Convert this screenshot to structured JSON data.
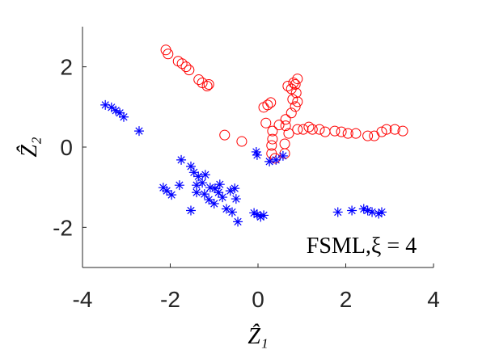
{
  "chart_data": {
    "type": "scatter",
    "xlabel": "Ẑ₁",
    "ylabel": "Ẑ₂",
    "annotation": "FSML,ξ = 4",
    "xlim": [
      -4,
      4
    ],
    "ylim": [
      -3,
      3
    ],
    "xticks": [
      -4,
      -2,
      0,
      2,
      4
    ],
    "yticks": [
      -2,
      0,
      2
    ],
    "series": [
      {
        "color": "#ff0000",
        "marker": "circle",
        "x": [
          -2.1,
          -2.05,
          -1.82,
          -1.73,
          -1.64,
          -1.57,
          -1.35,
          -1.27,
          -1.16,
          -1.12,
          -0.76,
          -0.37,
          0.13,
          0.22,
          0.29,
          0.18,
          0.33,
          0.33,
          0.31,
          0.31,
          0.61,
          0.61,
          0.39,
          0.63,
          0.63,
          0.76,
          0.85,
          0.9,
          0.79,
          0.76,
          0.85,
          0.9,
          0.81,
          0.68,
          0.87,
          0.7,
          0.9,
          1.03,
          1.24,
          1.4,
          1.53,
          1.75,
          1.9,
          2.05,
          2.23,
          2.5,
          2.65,
          2.82,
          2.93,
          3.12,
          3.3,
          1.16,
          0.48
        ],
        "y": [
          2.42,
          2.32,
          2.14,
          2.08,
          2.0,
          1.92,
          1.68,
          1.6,
          1.52,
          1.56,
          0.3,
          0.14,
          0.99,
          1.05,
          1.11,
          0.6,
          0.4,
          0.2,
          0.04,
          -0.16,
          0.08,
          -0.16,
          -0.28,
          0.69,
          0.53,
          0.85,
          1.01,
          1.13,
          1.19,
          1.45,
          1.56,
          1.7,
          1.6,
          1.52,
          1.35,
          0.34,
          0.44,
          0.44,
          0.44,
          0.44,
          0.38,
          0.4,
          0.38,
          0.34,
          0.34,
          0.28,
          0.28,
          0.38,
          0.44,
          0.44,
          0.4,
          0.5,
          0.55
        ]
      },
      {
        "color": "#0000ff",
        "marker": "star",
        "x": [
          -3.48,
          -3.34,
          -3.24,
          -3.15,
          -3.06,
          -2.71,
          -0.02,
          -0.04,
          0.26,
          0.41,
          0.57,
          -0.02,
          0.06,
          0.13,
          -0.09,
          -2.16,
          -2.08,
          -1.97,
          -1.79,
          -1.75,
          -1.53,
          -1.46,
          -1.36,
          -1.27,
          -1.4,
          -1.53,
          -1.22,
          -1.09,
          -1.12,
          -1.0,
          -0.9,
          -0.87,
          -0.81,
          -0.72,
          -0.63,
          -0.53,
          -0.5,
          -0.59,
          -0.46,
          -1.2,
          -1.4,
          -0.98,
          1.82,
          2.14,
          2.41,
          2.5,
          2.6,
          2.75,
          2.82
        ],
        "y": [
          1.05,
          0.99,
          0.91,
          0.85,
          0.75,
          0.4,
          -0.2,
          -0.12,
          -0.36,
          -0.32,
          -0.22,
          -1.68,
          -1.74,
          -1.7,
          -1.64,
          -1.01,
          -1.09,
          -1.19,
          -0.95,
          -0.32,
          -0.48,
          -0.63,
          -0.73,
          -0.89,
          -1.13,
          -1.58,
          -1.17,
          -1.01,
          -1.31,
          -1.41,
          -1.13,
          -0.93,
          -1.25,
          -1.54,
          -1.09,
          -1.03,
          -1.29,
          -1.62,
          -1.86,
          -0.69,
          -0.95,
          -1.03,
          -1.62,
          -1.58,
          -1.54,
          -1.58,
          -1.62,
          -1.66,
          -1.62
        ]
      }
    ]
  }
}
